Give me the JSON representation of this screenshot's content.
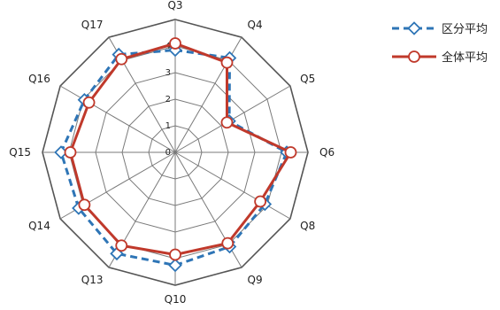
{
  "chart_data": {
    "type": "radar",
    "categories": [
      "Q3",
      "Q4",
      "Q5",
      "Q6",
      "Q8",
      "Q9",
      "Q10",
      "Q13",
      "Q14",
      "Q15",
      "Q16",
      "Q17"
    ],
    "r_ticks": [
      "0",
      "1",
      "2",
      "3",
      "4"
    ],
    "rlim": [
      0,
      5
    ],
    "grid": true,
    "legend_position": "top-right",
    "series": [
      {
        "name": "区分平均",
        "values": [
          3.85,
          4.1,
          2.35,
          4.2,
          3.9,
          4.1,
          4.25,
          4.4,
          4.2,
          4.3,
          3.95,
          4.25
        ],
        "color": "#2e75b6",
        "line_style": "dashed",
        "marker": "diamond"
      },
      {
        "name": "全体平均",
        "values": [
          4.1,
          3.9,
          2.25,
          4.35,
          3.7,
          3.95,
          3.85,
          4.05,
          3.95,
          3.95,
          3.75,
          4.05
        ],
        "color": "#c0392b",
        "line_style": "solid",
        "marker": "circle"
      }
    ]
  }
}
